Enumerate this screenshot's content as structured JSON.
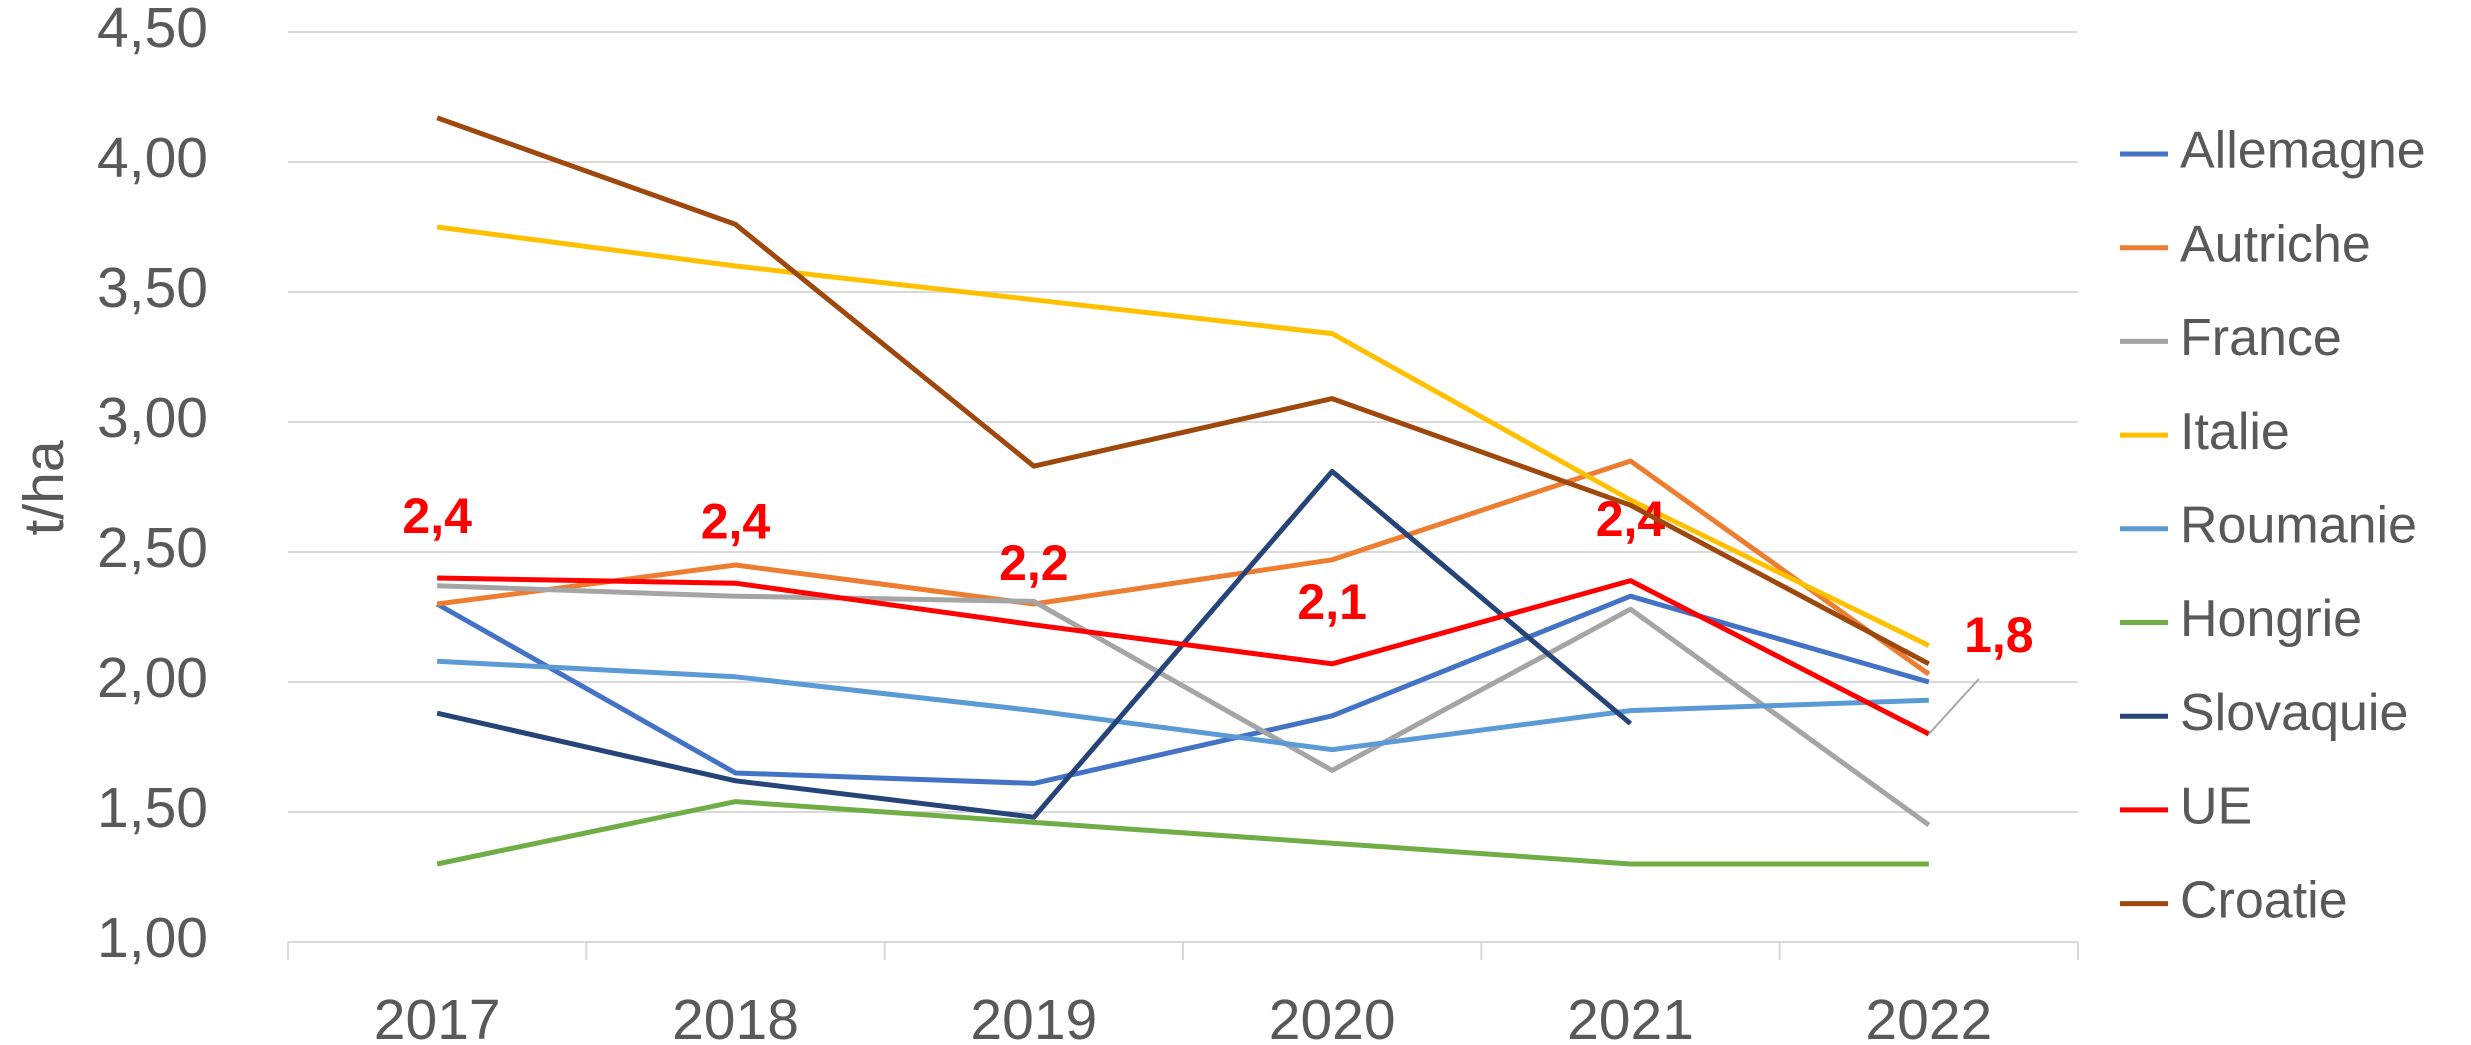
{
  "chart_data": {
    "type": "line",
    "y_label": "t/ha",
    "categories": [
      "2017",
      "2018",
      "2019",
      "2020",
      "2021",
      "2022"
    ],
    "ylim": [
      1.0,
      4.5
    ],
    "yticks": [
      {
        "value": 1.0,
        "label": "1,00"
      },
      {
        "value": 1.5,
        "label": "1,50"
      },
      {
        "value": 2.0,
        "label": "2,00"
      },
      {
        "value": 2.5,
        "label": "2,50"
      },
      {
        "value": 3.0,
        "label": "3,00"
      },
      {
        "value": 3.5,
        "label": "3,50"
      },
      {
        "value": 4.0,
        "label": "4,00"
      },
      {
        "value": 4.5,
        "label": "4,50"
      }
    ],
    "grid": true,
    "legend": "right",
    "series": [
      {
        "name": "Allemagne",
        "color": "#4472c4",
        "values": [
          2.3,
          1.65,
          1.61,
          1.87,
          2.33,
          2.0
        ]
      },
      {
        "name": "Autriche",
        "color": "#ed7d31",
        "values": [
          2.3,
          2.45,
          2.3,
          2.47,
          2.85,
          2.03
        ]
      },
      {
        "name": "France",
        "color": "#a5a5a5",
        "values": [
          2.37,
          2.33,
          2.31,
          1.66,
          2.28,
          1.45
        ]
      },
      {
        "name": "Italie",
        "color": "#ffc000",
        "values": [
          3.75,
          3.6,
          3.47,
          3.34,
          2.7,
          2.14
        ]
      },
      {
        "name": "Roumanie",
        "color": "#5b9bd5",
        "values": [
          2.08,
          2.02,
          1.89,
          1.74,
          1.89,
          1.93
        ]
      },
      {
        "name": "Hongrie",
        "color": "#70ad47",
        "values": [
          1.3,
          1.54,
          1.46,
          1.38,
          1.3,
          1.3
        ]
      },
      {
        "name": "Slovaquie",
        "color": "#264478",
        "values": [
          1.88,
          1.62,
          1.48,
          2.81,
          1.84,
          null
        ]
      },
      {
        "name": "UE",
        "color": "#ff0000",
        "values": [
          2.4,
          2.38,
          2.22,
          2.07,
          2.39,
          1.8
        ],
        "value_labels": [
          "2,4",
          "2,4",
          "2,2",
          "2,1",
          "2,4",
          "1,8"
        ]
      },
      {
        "name": "Croatie",
        "color": "#9e480e",
        "values": [
          4.17,
          3.76,
          2.83,
          3.09,
          2.68,
          2.07
        ]
      }
    ]
  }
}
